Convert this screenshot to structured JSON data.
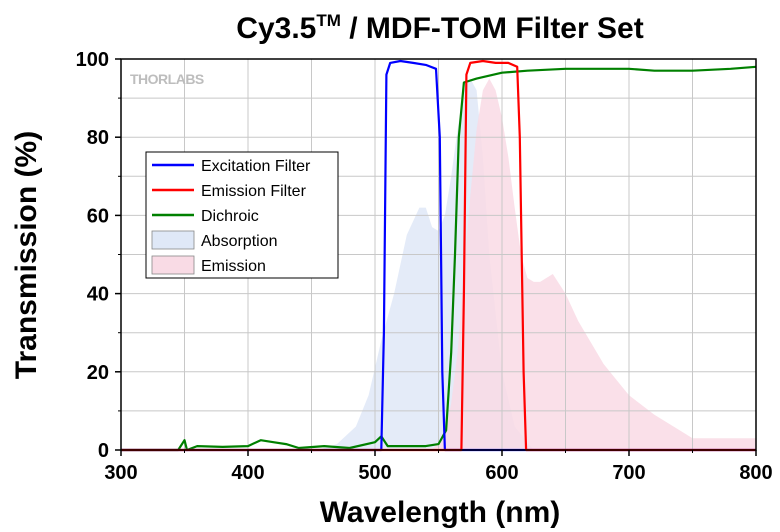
{
  "chart_data": {
    "type": "line",
    "title": "Cy3.5",
    "title_superscript": "TM",
    "title_rest": " / MDF-TOM Filter Set",
    "xlabel": "Wavelength (nm)",
    "ylabel": "Transmission (%)",
    "xlim": [
      300,
      800
    ],
    "ylim": [
      0,
      100
    ],
    "xticks": [
      "300",
      "400",
      "500",
      "600",
      "700",
      "800"
    ],
    "yticks": [
      "0",
      "20",
      "40",
      "60",
      "80",
      "100"
    ],
    "grid": true,
    "legend_position": "upper-left",
    "watermark": "THORLABS",
    "series": [
      {
        "name": "Excitation Filter",
        "style": "line",
        "color": "#0000ff",
        "x": [
          300,
          505,
          507,
          509,
          512,
          520,
          530,
          540,
          548,
          551,
          553,
          555,
          800
        ],
        "y": [
          0,
          0,
          30,
          96,
          99,
          99.5,
          99,
          98.5,
          97.5,
          80,
          20,
          0,
          0
        ]
      },
      {
        "name": "Emission Filter",
        "style": "line",
        "color": "#ff0000",
        "x": [
          300,
          568,
          570,
          572,
          575,
          585,
          595,
          605,
          612,
          614,
          617,
          619,
          800
        ],
        "y": [
          0,
          0,
          40,
          96,
          99,
          99.5,
          99,
          99,
          98,
          80,
          20,
          0,
          0
        ]
      },
      {
        "name": "Dichroic",
        "style": "line",
        "color": "#008000",
        "x": [
          300,
          345,
          350,
          352,
          360,
          380,
          400,
          410,
          420,
          430,
          440,
          460,
          480,
          500,
          505,
          510,
          520,
          540,
          550,
          556,
          560,
          563,
          566,
          570,
          580,
          600,
          620,
          650,
          700,
          720,
          750,
          780,
          800
        ],
        "y": [
          0,
          0,
          2.5,
          0,
          1,
          0.8,
          1,
          2.5,
          2,
          1.5,
          0.5,
          1,
          0.5,
          2,
          3.5,
          1,
          1,
          1,
          1.5,
          5,
          25,
          50,
          80,
          94,
          95,
          96.5,
          97,
          97.5,
          97.5,
          97,
          97,
          97.5,
          98
        ]
      },
      {
        "name": "Absorption",
        "style": "area",
        "color": "#dfe8f7",
        "x": [
          300,
          455,
          470,
          485,
          495,
          505,
          515,
          525,
          535,
          540,
          545,
          550,
          555,
          560,
          565,
          570,
          575,
          580,
          585,
          590,
          600,
          610,
          625,
          800
        ],
        "y": [
          0,
          0,
          1.5,
          6,
          14,
          28,
          40,
          55,
          62,
          62,
          57,
          56,
          60,
          70,
          82,
          92,
          95,
          92,
          75,
          50,
          20,
          6,
          0,
          0
        ]
      },
      {
        "name": "Emission",
        "style": "area",
        "color": "#f9dbe5",
        "x": [
          300,
          545,
          555,
          560,
          565,
          570,
          575,
          580,
          585,
          590,
          595,
          600,
          605,
          610,
          615,
          620,
          625,
          630,
          640,
          650,
          660,
          680,
          700,
          720,
          740,
          750,
          800
        ],
        "y": [
          0,
          0,
          4,
          12,
          25,
          45,
          65,
          82,
          92,
          95,
          92,
          85,
          75,
          62,
          50,
          44,
          43,
          43,
          45,
          40,
          33,
          22,
          14,
          9,
          5,
          3,
          3
        ]
      }
    ]
  }
}
